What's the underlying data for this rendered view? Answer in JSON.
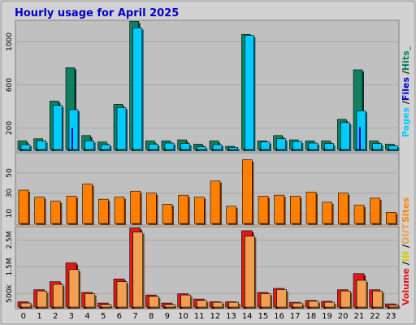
{
  "chart_data": {
    "type": "bar",
    "title": "Hourly usage for April 2025",
    "categories": [
      "0",
      "1",
      "2",
      "3",
      "4",
      "5",
      "6",
      "7",
      "8",
      "9",
      "10",
      "11",
      "12",
      "13",
      "14",
      "15",
      "16",
      "17",
      "18",
      "19",
      "20",
      "21",
      "22",
      "23"
    ],
    "panels": [
      {
        "name": "pages-files-hits",
        "yticks": [
          "200",
          "600",
          "1000"
        ],
        "ylim": [
          0,
          1200
        ],
        "tick_values": [
          200,
          600,
          1000
        ],
        "series": [
          {
            "name": "Pages",
            "color": "#0000cc",
            "values": [
              0,
              0,
              0,
              200,
              0,
              0,
              0,
              0,
              0,
              0,
              0,
              0,
              0,
              0,
              0,
              0,
              0,
              0,
              0,
              0,
              0,
              210,
              0,
              0
            ]
          },
          {
            "name": "Files",
            "color": "#00ccff",
            "values": [
              45,
              80,
              410,
              370,
              80,
              45,
              390,
              1130,
              50,
              60,
              55,
              25,
              45,
              20,
              1060,
              70,
              100,
              75,
              60,
              55,
              250,
              360,
              55,
              35
            ]
          },
          {
            "name": "Hits",
            "color": "#108060",
            "values": [
              80,
              100,
              450,
              760,
              130,
              70,
              420,
              1190,
              80,
              80,
              90,
              50,
              80,
              30,
              1070,
              80,
              130,
              90,
              80,
              80,
              280,
              740,
              80,
              50
            ]
          }
        ]
      },
      {
        "name": "sites",
        "yticks": [
          "10",
          "30",
          "50"
        ],
        "ylim": [
          0,
          70
        ],
        "tick_values": [
          10,
          30,
          50
        ],
        "series": [
          {
            "name": "Sites",
            "color": "#ff8000",
            "values": [
              33,
              26,
              22,
              27,
              39,
              24,
              26,
              32,
              30,
              19,
              28,
              26,
              42,
              17,
              63,
              27,
              28,
              27,
              31,
              21,
              30,
              18,
              25,
              11
            ]
          }
        ]
      },
      {
        "name": "volume",
        "yticks": [
          "500k",
          "1.5M",
          "2.5M"
        ],
        "ylim": [
          0,
          3000000
        ],
        "tick_values": [
          500000,
          1500000,
          2500000
        ],
        "series": [
          {
            "name": "Volume",
            "color": "#e01818",
            "values": [
              200000,
              650000,
              950000,
              1650000,
              550000,
              150000,
              1050000,
              2950000,
              450000,
              150000,
              500000,
              300000,
              200000,
              200000,
              2850000,
              550000,
              700000,
              180000,
              250000,
              220000,
              650000,
              1250000,
              650000,
              120000
            ]
          },
          {
            "name": "OUT",
            "color": "#f0a050",
            "values": [
              150000,
              600000,
              850000,
              1400000,
              500000,
              100000,
              950000,
              2800000,
              400000,
              100000,
              450000,
              250000,
              180000,
              180000,
              2650000,
              500000,
              650000,
              150000,
              220000,
              180000,
              600000,
              1000000,
              600000,
              80000
            ]
          }
        ]
      }
    ],
    "right_labels": {
      "top": [
        {
          "text": "Pages",
          "color": "#00ccff"
        },
        {
          "text": " /",
          "color": "#000000"
        },
        {
          "text": "Files",
          "color": "#0000cc"
        },
        {
          "text": " /",
          "color": "#000000"
        },
        {
          "text": "Hits_",
          "color": "#108060"
        }
      ],
      "middle": [
        {
          "text": "Sites",
          "color": "#ff8000"
        }
      ],
      "bottom": [
        {
          "text": "Volume",
          "color": "#e01818"
        },
        {
          "text": " /",
          "color": "#000000"
        },
        {
          "text": "IN",
          "color": "#d0d000"
        },
        {
          "text": " /",
          "color": "#000000"
        },
        {
          "text": "OUT",
          "color": "#f0a050"
        }
      ]
    },
    "colors": {
      "title": "#0000cc",
      "frame_bg": "#d2d2d2",
      "plot_bg": "#c0c0c0",
      "grid": "#a8a8a8",
      "hits": "#108060",
      "files": "#00ccff",
      "pages": "#0000cc",
      "sites": "#ff8000",
      "volume": "#e01818",
      "out": "#f0a050"
    }
  }
}
